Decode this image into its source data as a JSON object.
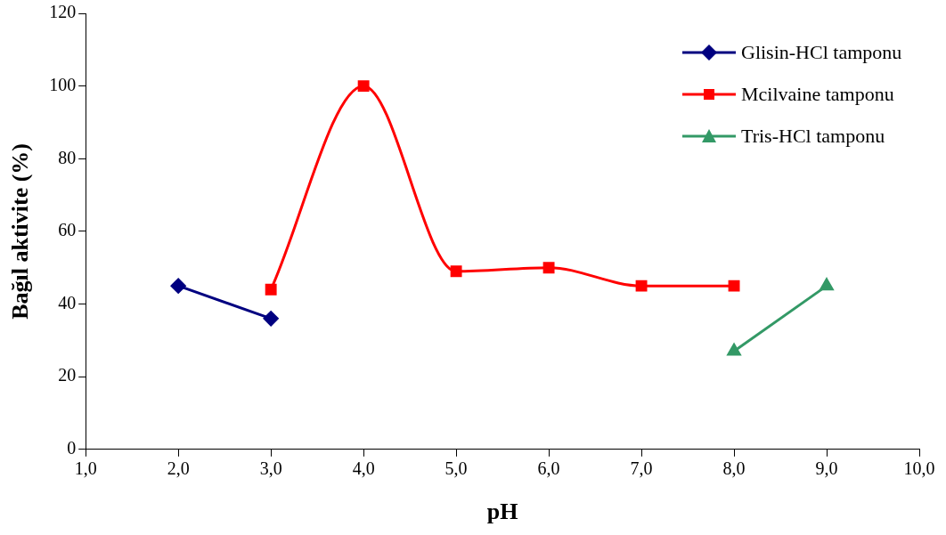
{
  "chart_data": {
    "type": "line",
    "xlabel": "pH",
    "ylabel": "Bağıl aktivite (%)",
    "xlim": [
      1,
      10
    ],
    "xticks": [
      {
        "value": 1,
        "label": "1,0"
      },
      {
        "value": 2,
        "label": "2,0"
      },
      {
        "value": 3,
        "label": "3,0"
      },
      {
        "value": 4,
        "label": "4,0"
      },
      {
        "value": 5,
        "label": "5,0"
      },
      {
        "value": 6,
        "label": "6,0"
      },
      {
        "value": 7,
        "label": "7,0"
      },
      {
        "value": 8,
        "label": "8,0"
      },
      {
        "value": 9,
        "label": "9,0"
      },
      {
        "value": 10,
        "label": "10,0"
      }
    ],
    "ylim": [
      0,
      120
    ],
    "yticks": [
      0,
      20,
      40,
      60,
      80,
      100,
      120
    ],
    "grid": false,
    "legend": "top right",
    "line_style": "solid",
    "series": [
      {
        "name": "Glisin-HCl tamponu",
        "color": "#000080",
        "marker": "diamond",
        "x": [
          2,
          3
        ],
        "values": [
          45,
          36
        ]
      },
      {
        "name": "Mcilvaine tamponu",
        "color": "#ff0000",
        "marker": "square",
        "x": [
          3,
          4,
          5,
          6,
          7,
          8
        ],
        "values": [
          44,
          100,
          49,
          50,
          45,
          45
        ]
      },
      {
        "name": "Tris-HCl tamponu",
        "color": "#339966",
        "marker": "triangle",
        "x": [
          8,
          9
        ],
        "values": [
          27,
          45
        ]
      }
    ]
  }
}
